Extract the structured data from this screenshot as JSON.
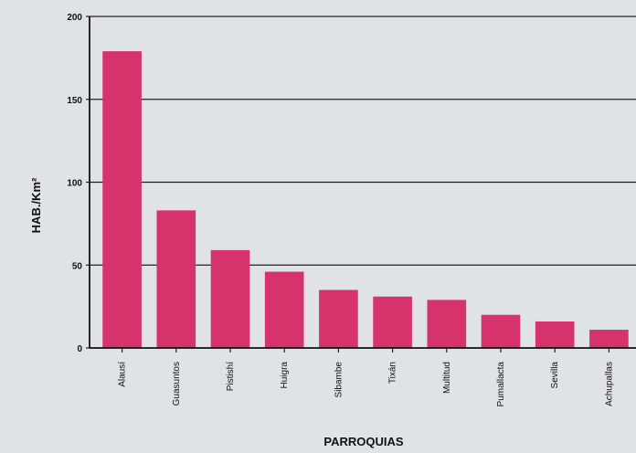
{
  "chart_data": {
    "type": "bar",
    "title": "",
    "xlabel": "PARROQUIAS",
    "ylabel": "HAB./Km²",
    "ylim": [
      0,
      200
    ],
    "yticks": [
      0,
      50,
      100,
      150,
      200
    ],
    "grid": true,
    "bar_color": "#d6336c",
    "categories": [
      "Alausí",
      "Guasuntos",
      "Pistishí",
      "Huigra",
      "Sibambe",
      "Tixán",
      "Multitud",
      "Pumallacta",
      "Sevilla",
      "Achupallas"
    ],
    "values": [
      179,
      83,
      59,
      46,
      35,
      31,
      29,
      20,
      16,
      11
    ]
  }
}
